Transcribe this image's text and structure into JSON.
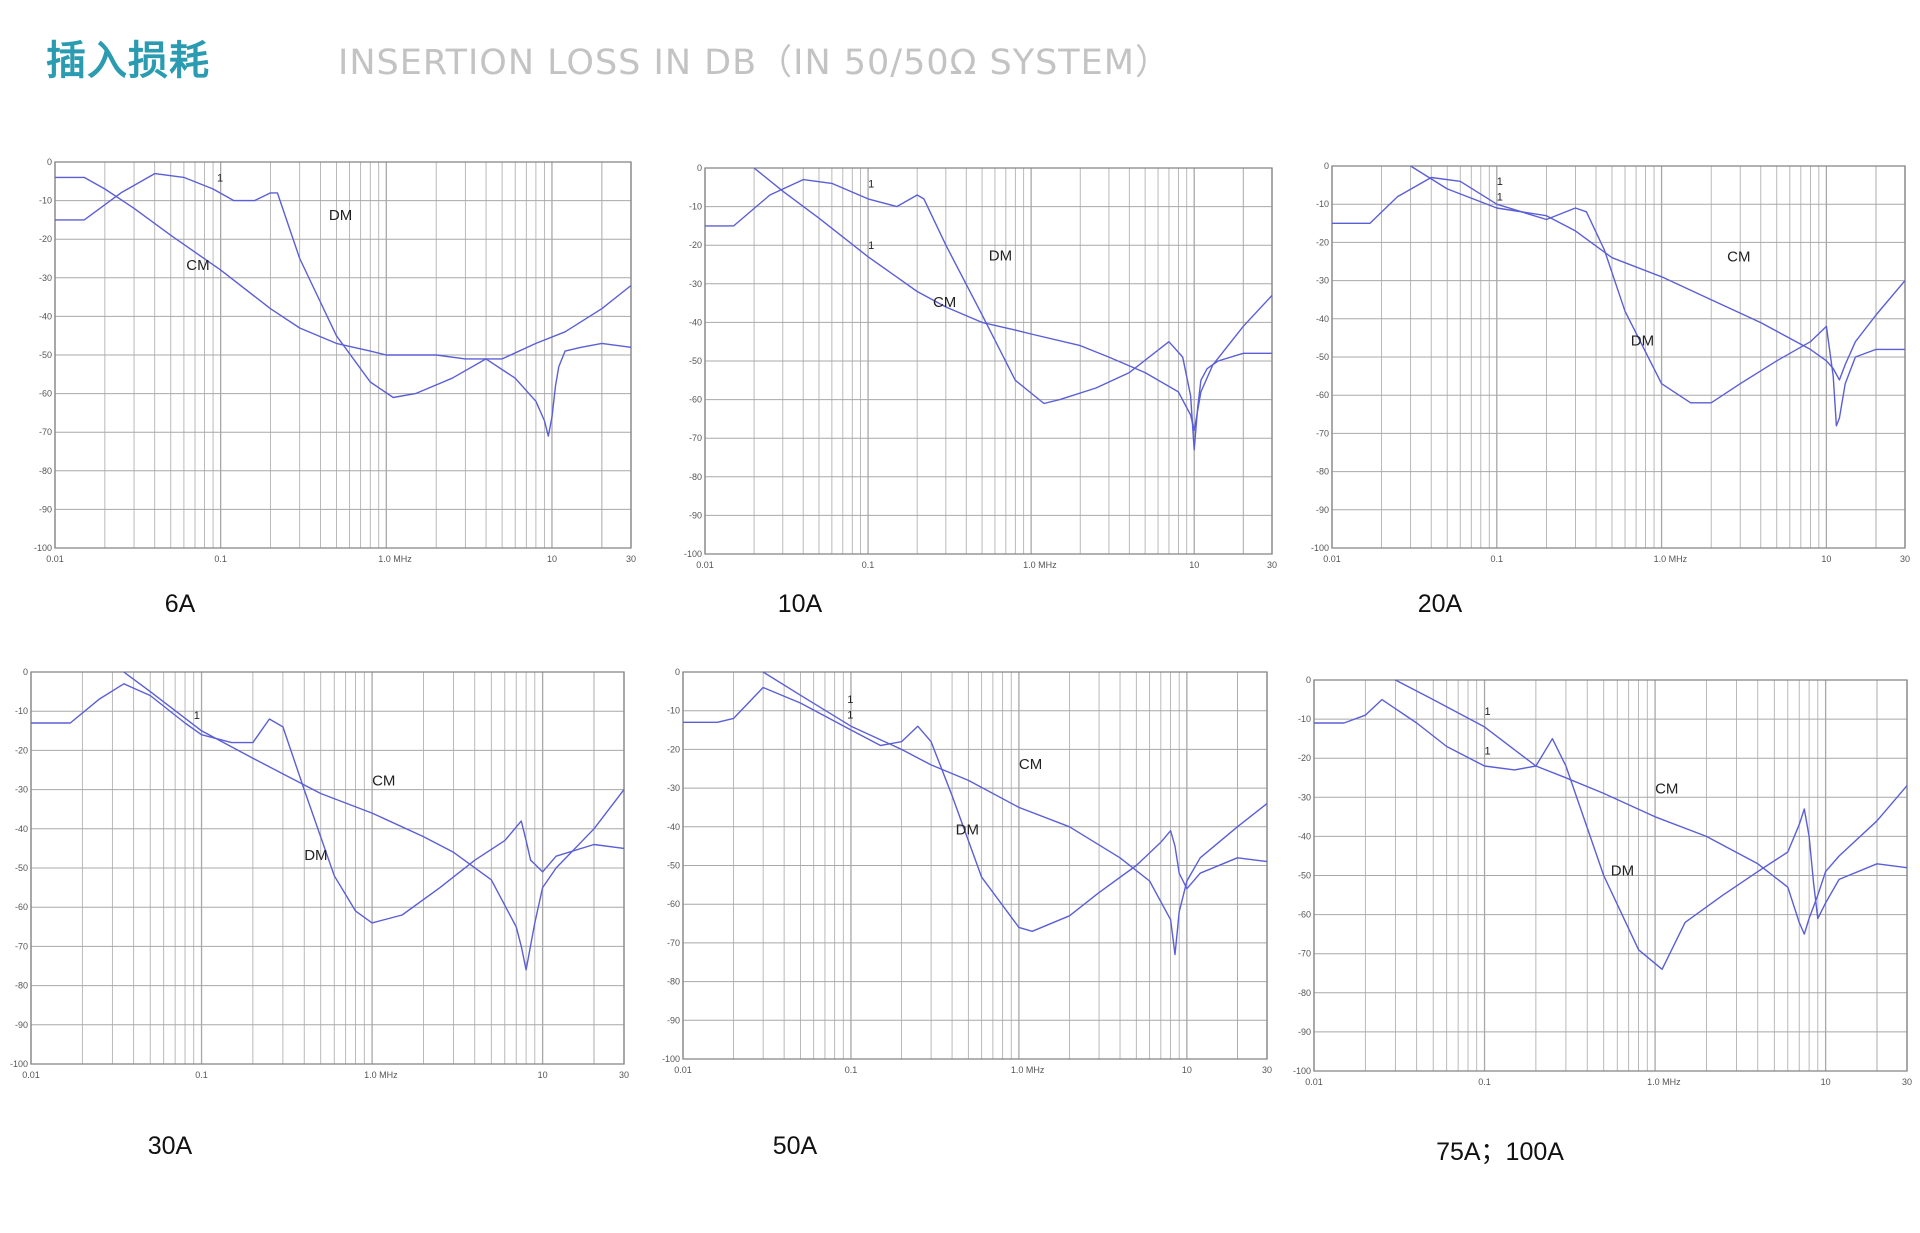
{
  "header": {
    "title": "插入损耗",
    "subtitle": "INSERTION LOSS IN DB（IN 50/50Ω SYSTEM）"
  },
  "colors": {
    "title": "#2a9bb0",
    "subtitle": "#c3c3c3",
    "curve": "#5b5fd6",
    "grid": "#a8a8a8"
  },
  "chart_data": [
    {
      "type": "line",
      "title": "6A",
      "xscale": "log",
      "xlim": [
        0.01,
        30
      ],
      "ylim": [
        -100,
        0
      ],
      "x_ticks": [
        "0.01",
        "0.1",
        "1.0 MHz",
        "10",
        "30"
      ],
      "y_ticks": [
        "0",
        "-10",
        "-20",
        "-30",
        "-40",
        "-50",
        "-60",
        "-70",
        "-80",
        "-90",
        "-100"
      ],
      "series": [
        {
          "name": "DM",
          "x": [
            0.01,
            0.015,
            0.025,
            0.04,
            0.06,
            0.09,
            0.12,
            0.16,
            0.2,
            0.22,
            0.3,
            0.5,
            0.8,
            1.1,
            1.5,
            2.5,
            4,
            6,
            8,
            9,
            9.5,
            10,
            10.5,
            11,
            12,
            15,
            20,
            30
          ],
          "y": [
            -15,
            -15,
            -8,
            -3,
            -4,
            -7,
            -10,
            -10,
            -8,
            -8,
            -25,
            -45,
            -57,
            -61,
            -60,
            -56,
            -51,
            -56,
            -62,
            -67,
            -71,
            -66,
            -58,
            -53,
            -49,
            -48,
            -47,
            -48
          ]
        },
        {
          "name": "CM",
          "x": [
            0.01,
            0.015,
            0.02,
            0.03,
            0.05,
            0.1,
            0.2,
            0.3,
            0.5,
            0.8,
            1,
            1.5,
            2,
            3,
            5,
            8,
            12,
            20,
            30
          ],
          "y": [
            -4,
            -4,
            -7,
            -12,
            -19,
            -28,
            -38,
            -43,
            -47,
            -49,
            -50,
            -50,
            -50,
            -51,
            -51,
            -47,
            -44,
            -38,
            -32
          ]
        }
      ],
      "annotations": [
        {
          "text": "DM",
          "x": 0.45,
          "y": -15
        },
        {
          "text": "CM",
          "x": 0.062,
          "y": -28
        },
        {
          "text": "1",
          "x": 0.095,
          "y": -5
        }
      ]
    },
    {
      "type": "line",
      "title": "10A",
      "xscale": "log",
      "xlim": [
        0.01,
        30
      ],
      "ylim": [
        -100,
        0
      ],
      "x_ticks": [
        "0.01",
        "0.1",
        "1.0 MHz",
        "10",
        "30"
      ],
      "y_ticks": [
        "0",
        "-10",
        "-20",
        "-30",
        "-40",
        "-50",
        "-60",
        "-70",
        "-80",
        "-90",
        "-100"
      ],
      "series": [
        {
          "name": "DM",
          "x": [
            0.01,
            0.015,
            0.025,
            0.04,
            0.06,
            0.1,
            0.15,
            0.2,
            0.22,
            0.3,
            0.5,
            0.8,
            1.2,
            1.5,
            2.5,
            4,
            7,
            8.5,
            9.5,
            10,
            10.5,
            11,
            12,
            14,
            20,
            30
          ],
          "y": [
            -15,
            -15,
            -7,
            -3,
            -4,
            -8,
            -10,
            -7,
            -8,
            -20,
            -38,
            -55,
            -61,
            -60,
            -57,
            -53,
            -45,
            -49,
            -59,
            -73,
            -62,
            -55,
            -52,
            -50,
            -48,
            -48
          ]
        },
        {
          "name": "CM",
          "x": [
            0.02,
            0.03,
            0.05,
            0.1,
            0.2,
            0.3,
            0.5,
            0.8,
            1,
            2,
            3,
            5,
            8,
            9.5,
            10,
            11,
            13,
            20,
            30
          ],
          "y": [
            0,
            -6,
            -13,
            -23,
            -32,
            -36,
            -40,
            -42,
            -43,
            -46,
            -49,
            -53,
            -58,
            -64,
            -68,
            -58,
            -51,
            -41,
            -33
          ]
        }
      ],
      "annotations": [
        {
          "text": "DM",
          "x": 0.55,
          "y": -24
        },
        {
          "text": "CM",
          "x": 0.25,
          "y": -36
        },
        {
          "text": "1",
          "x": 0.1,
          "y": -5
        },
        {
          "text": "1",
          "x": 0.1,
          "y": -21
        }
      ]
    },
    {
      "type": "line",
      "title": "20A",
      "xscale": "log",
      "xlim": [
        0.01,
        30
      ],
      "ylim": [
        -100,
        0
      ],
      "x_ticks": [
        "0.01",
        "0.1",
        "1.0 MHz",
        "10",
        "30"
      ],
      "y_ticks": [
        "0",
        "-10",
        "-20",
        "-30",
        "-40",
        "-50",
        "-60",
        "-70",
        "-80",
        "-90",
        "-100"
      ],
      "series": [
        {
          "name": "DM",
          "x": [
            0.01,
            0.017,
            0.025,
            0.04,
            0.06,
            0.1,
            0.2,
            0.3,
            0.35,
            0.45,
            0.6,
            1,
            1.5,
            2,
            3,
            5,
            8,
            10,
            11,
            11.5,
            12,
            13,
            15,
            20,
            30
          ],
          "y": [
            -15,
            -15,
            -8,
            -3,
            -4,
            -10,
            -14,
            -11,
            -12,
            -22,
            -38,
            -57,
            -62,
            -62,
            -57,
            -51,
            -46,
            -42,
            -55,
            -68,
            -66,
            -57,
            -50,
            -48,
            -48
          ]
        },
        {
          "name": "CM",
          "x": [
            0.03,
            0.05,
            0.1,
            0.2,
            0.3,
            0.5,
            1,
            2,
            4,
            8,
            10,
            11,
            12,
            13,
            15,
            20,
            30
          ],
          "y": [
            0,
            -6,
            -11,
            -13,
            -17,
            -24,
            -29,
            -35,
            -41,
            -48,
            -51,
            -53,
            -56,
            -52,
            -46,
            -39,
            -30
          ]
        }
      ],
      "annotations": [
        {
          "text": "DM",
          "x": 0.65,
          "y": -47
        },
        {
          "text": "CM",
          "x": 2.5,
          "y": -25
        },
        {
          "text": "1",
          "x": 0.1,
          "y": -5
        },
        {
          "text": "1",
          "x": 0.1,
          "y": -9
        }
      ]
    },
    {
      "type": "line",
      "title": "30A",
      "xscale": "log",
      "xlim": [
        0.01,
        30
      ],
      "ylim": [
        -100,
        0
      ],
      "x_ticks": [
        "0.01",
        "0.1",
        "1.0 MHz",
        "10",
        "30"
      ],
      "y_ticks": [
        "0",
        "-10",
        "-20",
        "-30",
        "-40",
        "-50",
        "-60",
        "-70",
        "-80",
        "-90",
        "-100"
      ],
      "series": [
        {
          "name": "DM",
          "x": [
            0.01,
            0.017,
            0.025,
            0.035,
            0.05,
            0.08,
            0.1,
            0.15,
            0.2,
            0.25,
            0.3,
            0.4,
            0.6,
            0.8,
            1,
            1.5,
            2.5,
            4,
            6,
            7.5,
            8,
            8.5,
            9,
            10,
            12,
            20,
            30
          ],
          "y": [
            -13,
            -13,
            -7,
            -3,
            -6,
            -13,
            -16,
            -18,
            -18,
            -12,
            -14,
            -30,
            -52,
            -61,
            -64,
            -62,
            -55,
            -48,
            -43,
            -38,
            -43,
            -48,
            -49,
            -51,
            -47,
            -44,
            -45
          ]
        },
        {
          "name": "CM",
          "x": [
            0.035,
            0.05,
            0.1,
            0.2,
            0.3,
            0.5,
            1,
            2,
            3,
            5,
            7,
            7.5,
            8,
            9,
            10,
            12,
            20,
            30
          ],
          "y": [
            0,
            -5,
            -15,
            -22,
            -26,
            -31,
            -36,
            -42,
            -46,
            -53,
            -65,
            -70,
            -76,
            -64,
            -55,
            -50,
            -40,
            -30
          ]
        }
      ],
      "annotations": [
        {
          "text": "DM",
          "x": 0.4,
          "y": -48
        },
        {
          "text": "CM",
          "x": 1.0,
          "y": -29
        },
        {
          "text": "1",
          "x": 0.09,
          "y": -12
        }
      ]
    },
    {
      "type": "line",
      "title": "50A",
      "xscale": "log",
      "xlim": [
        0.01,
        30
      ],
      "ylim": [
        -100,
        0
      ],
      "x_ticks": [
        "0.01",
        "0.1",
        "1.0 MHz",
        "10",
        "30"
      ],
      "y_ticks": [
        "0",
        "-10",
        "-20",
        "-30",
        "-40",
        "-50",
        "-60",
        "-70",
        "-80",
        "-90",
        "-100"
      ],
      "series": [
        {
          "name": "DM",
          "x": [
            0.01,
            0.016,
            0.02,
            0.03,
            0.05,
            0.1,
            0.15,
            0.2,
            0.25,
            0.3,
            0.4,
            0.6,
            1,
            1.2,
            2,
            3,
            5,
            7,
            8,
            8.5,
            9,
            10,
            12,
            20,
            30
          ],
          "y": [
            -13,
            -13,
            -12,
            -4,
            -8,
            -15,
            -19,
            -18,
            -14,
            -18,
            -32,
            -53,
            -66,
            -67,
            -63,
            -57,
            -50,
            -44,
            -41,
            -45,
            -52,
            -56,
            -52,
            -48,
            -49
          ]
        },
        {
          "name": "CM",
          "x": [
            0.03,
            0.05,
            0.1,
            0.2,
            0.3,
            0.5,
            1,
            2,
            4,
            6,
            8,
            8.5,
            9,
            10,
            12,
            20,
            30
          ],
          "y": [
            0,
            -6,
            -14,
            -20,
            -24,
            -28,
            -35,
            -40,
            -48,
            -54,
            -64,
            -73,
            -62,
            -54,
            -48,
            -40,
            -34
          ]
        }
      ],
      "annotations": [
        {
          "text": "DM",
          "x": 0.42,
          "y": -42
        },
        {
          "text": "CM",
          "x": 1.0,
          "y": -25
        },
        {
          "text": "1",
          "x": 0.095,
          "y": -8
        },
        {
          "text": "1",
          "x": 0.095,
          "y": -12
        }
      ]
    },
    {
      "type": "line",
      "title": "75A；100A",
      "xscale": "log",
      "xlim": [
        0.01,
        30
      ],
      "ylim": [
        -100,
        0
      ],
      "x_ticks": [
        "0.01",
        "0.1",
        "1.0 MHz",
        "10",
        "30"
      ],
      "y_ticks": [
        "0",
        "-10",
        "-20",
        "-30",
        "-40",
        "-50",
        "-60",
        "-70",
        "-80",
        "-90",
        "-100"
      ],
      "series": [
        {
          "name": "DM",
          "x": [
            0.01,
            0.015,
            0.02,
            0.025,
            0.04,
            0.06,
            0.1,
            0.15,
            0.2,
            0.25,
            0.3,
            0.5,
            0.8,
            1.1,
            1.5,
            2.5,
            4,
            6,
            7,
            7.5,
            8,
            8.5,
            9,
            10,
            12,
            20,
            30
          ],
          "y": [
            -11,
            -11,
            -9,
            -5,
            -11,
            -17,
            -22,
            -23,
            -22,
            -15,
            -22,
            -50,
            -69,
            -74,
            -62,
            -55,
            -49,
            -44,
            -37,
            -33,
            -40,
            -52,
            -61,
            -57,
            -51,
            -47,
            -48
          ]
        },
        {
          "name": "CM",
          "x": [
            0.03,
            0.05,
            0.1,
            0.2,
            0.3,
            0.5,
            1,
            2,
            4,
            6,
            7,
            7.5,
            8,
            9,
            10,
            12,
            20,
            30
          ],
          "y": [
            0,
            -5,
            -12,
            -22,
            -25,
            -29,
            -35,
            -40,
            -47,
            -53,
            -62,
            -65,
            -61,
            -55,
            -49,
            -45,
            -36,
            -27
          ]
        }
      ],
      "annotations": [
        {
          "text": "DM",
          "x": 0.55,
          "y": -50
        },
        {
          "text": "CM",
          "x": 1.0,
          "y": -29
        },
        {
          "text": "1",
          "x": 0.1,
          "y": -9
        },
        {
          "text": "1",
          "x": 0.1,
          "y": -19
        }
      ]
    }
  ]
}
